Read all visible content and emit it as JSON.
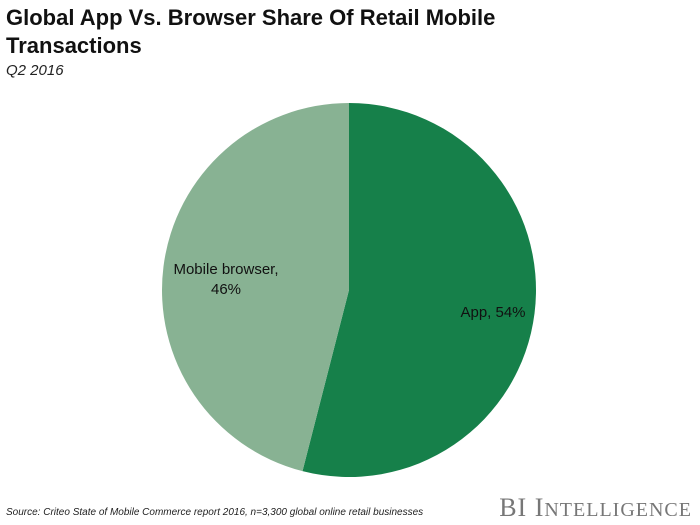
{
  "title": "Global App Vs. Browser Share Of Retail Mobile Transactions",
  "subtitle": "Q2 2016",
  "source": "Source: Criteo State of Mobile Commerce report 2016, n=3,300 global online retail businesses",
  "branding": {
    "part1": "BI",
    "part2": "Intelligence"
  },
  "colors": {
    "app": "#16804a",
    "mobile_browser": "#88b293"
  },
  "chart_data": {
    "type": "pie",
    "title": "Global App Vs. Browser Share Of Retail Mobile Transactions",
    "subtitle": "Q2 2016",
    "slices": [
      {
        "name": "App",
        "value": 54,
        "label_line1": "App, 54%",
        "label_line2": ""
      },
      {
        "name": "Mobile browser",
        "value": 46,
        "label_line1": "Mobile browser,",
        "label_line2": "46%"
      }
    ]
  }
}
